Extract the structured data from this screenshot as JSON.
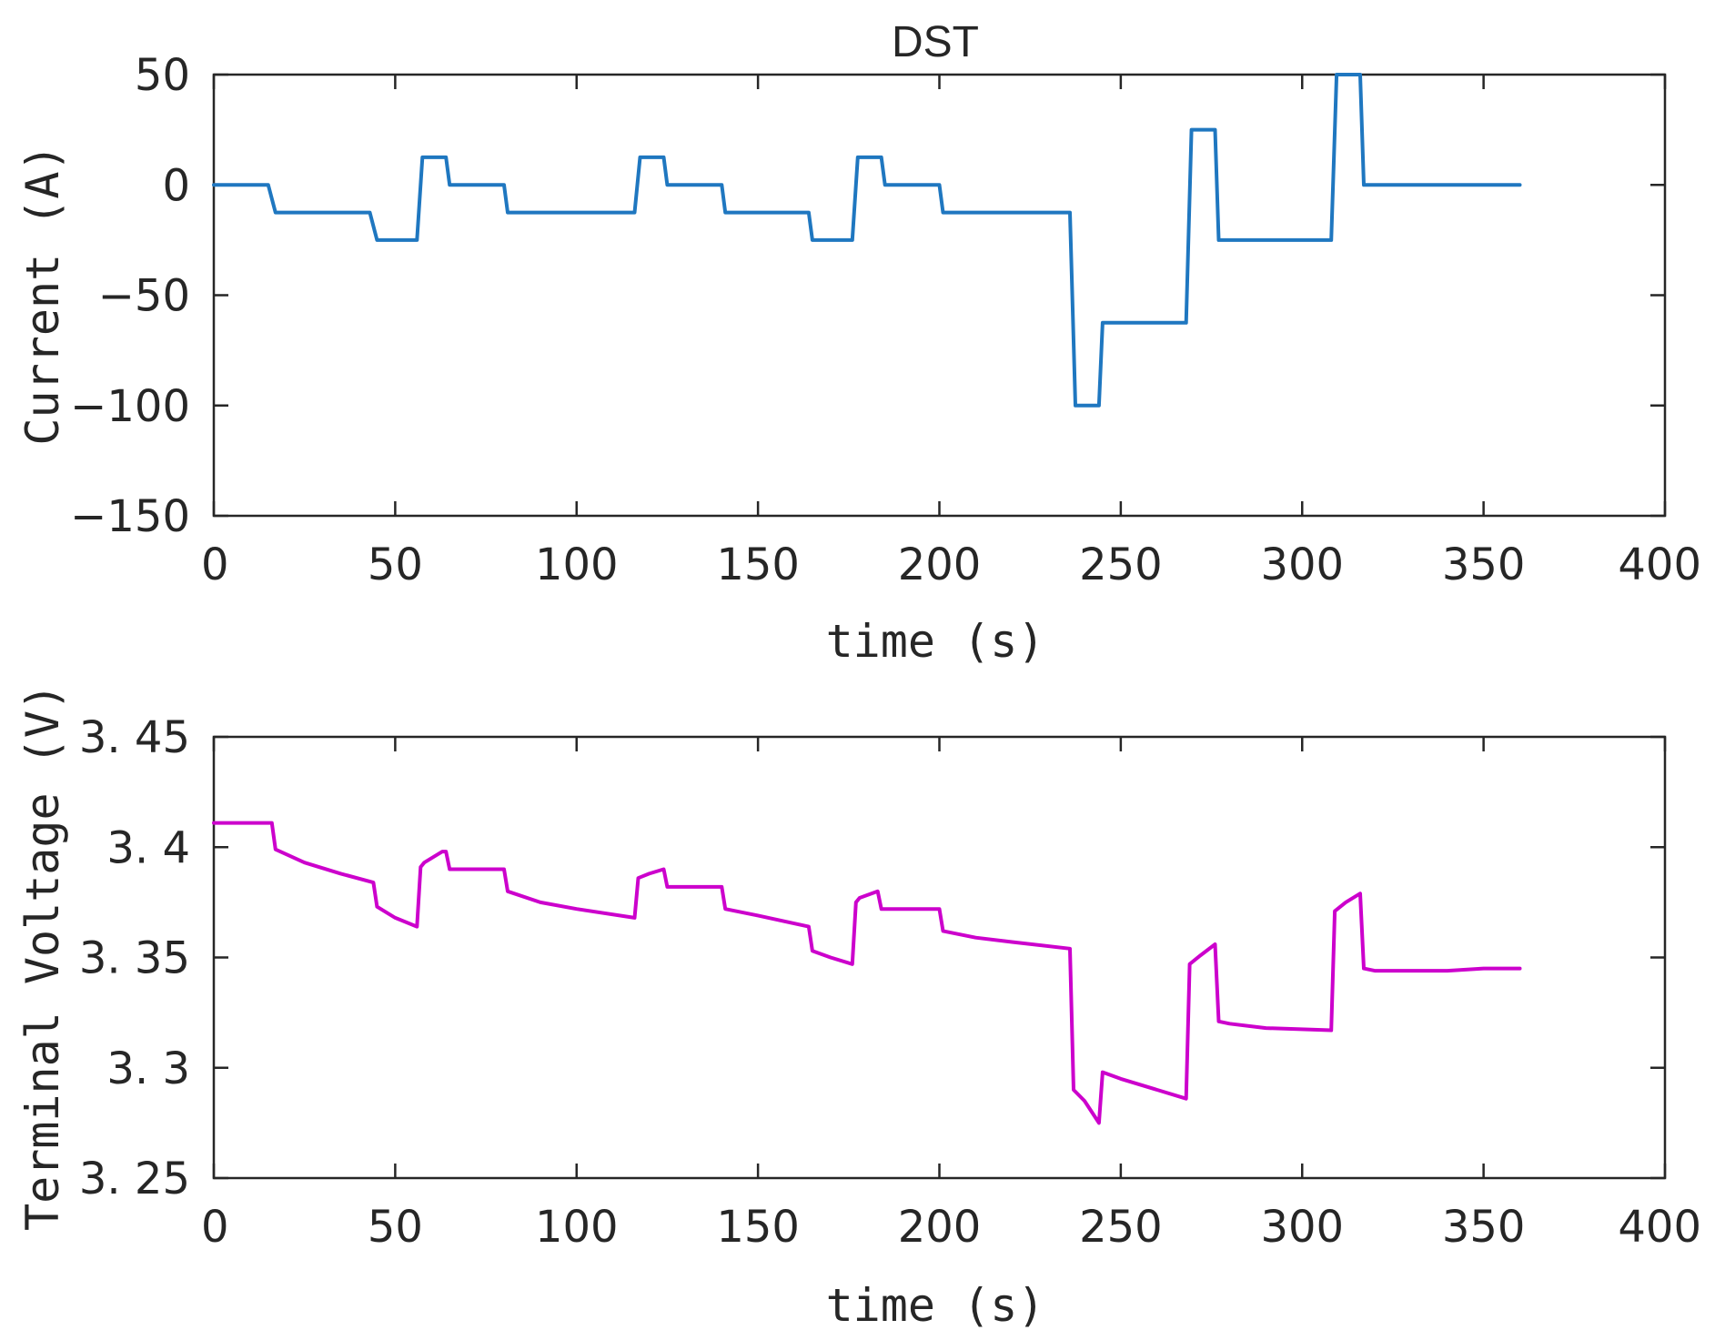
{
  "chart_data": [
    {
      "type": "line",
      "title": "DST",
      "xlabel": "time (s)",
      "ylabel": "Current (A)",
      "xlim": [
        0,
        400
      ],
      "ylim": [
        -150,
        50
      ],
      "xticks": [
        0,
        50,
        100,
        150,
        200,
        250,
        300,
        350,
        400
      ],
      "yticks": [
        -150,
        -100,
        -50,
        0,
        50
      ],
      "xtick_labels": [
        "0",
        "50",
        "100",
        "150",
        "200",
        "250",
        "300",
        "350",
        "400"
      ],
      "ytick_labels": [
        "−150",
        "−100",
        "−50",
        "0",
        "50"
      ],
      "grid": false,
      "series": [
        {
          "name": "Current",
          "color": "#1f77c0",
          "x": [
            0,
            15,
            17,
            43,
            45,
            56,
            57.5,
            64,
            65,
            80,
            81,
            116,
            117.5,
            124,
            125,
            140,
            141,
            164,
            165,
            176,
            177.5,
            184,
            185,
            200,
            201,
            236,
            237.5,
            244,
            245,
            268,
            269.5,
            276,
            277,
            308,
            309.5,
            316,
            317,
            360
          ],
          "y": [
            0,
            0,
            -12.5,
            -12.5,
            -25,
            -25,
            12.5,
            12.5,
            0,
            0,
            -12.5,
            -12.5,
            12.5,
            12.5,
            0,
            0,
            -12.5,
            -12.5,
            -25,
            -25,
            12.5,
            12.5,
            0,
            0,
            -12.5,
            -12.5,
            -100,
            -100,
            -62.5,
            -62.5,
            25,
            25,
            -25,
            -25,
            50,
            50,
            0,
            0
          ]
        }
      ]
    },
    {
      "type": "line",
      "title": "",
      "xlabel": "time (s)",
      "ylabel": "Terminal Voltage (V)",
      "xlim": [
        0,
        400
      ],
      "ylim": [
        3.25,
        3.45
      ],
      "xticks": [
        0,
        50,
        100,
        150,
        200,
        250,
        300,
        350,
        400
      ],
      "yticks": [
        3.25,
        3.3,
        3.35,
        3.4,
        3.45
      ],
      "xtick_labels": [
        "0",
        "50",
        "100",
        "150",
        "200",
        "250",
        "300",
        "350",
        "400"
      ],
      "ytick_labels": [
        "3. 25",
        "3. 3",
        "3. 35",
        "3. 4",
        "3. 45"
      ],
      "grid": false,
      "series": [
        {
          "name": "Terminal Voltage",
          "color": "#cc00cc",
          "x": [
            0,
            16,
            17,
            25,
            35,
            44,
            45,
            50,
            56,
            57,
            58,
            63,
            64,
            65,
            70,
            80,
            81,
            90,
            100,
            116,
            117,
            120,
            124,
            125,
            130,
            140,
            141,
            150,
            164,
            165,
            170,
            176,
            177,
            178,
            183,
            184,
            185,
            190,
            200,
            201,
            210,
            220,
            236,
            237,
            240,
            244,
            245,
            250,
            260,
            268,
            269,
            272,
            276,
            277,
            280,
            290,
            308,
            309,
            312,
            316,
            317,
            320,
            330,
            340,
            350,
            360
          ],
          "y": [
            3.411,
            3.411,
            3.399,
            3.393,
            3.388,
            3.384,
            3.373,
            3.368,
            3.364,
            3.391,
            3.393,
            3.398,
            3.398,
            3.39,
            3.39,
            3.39,
            3.38,
            3.375,
            3.372,
            3.368,
            3.386,
            3.388,
            3.39,
            3.382,
            3.382,
            3.382,
            3.372,
            3.369,
            3.364,
            3.353,
            3.35,
            3.347,
            3.375,
            3.377,
            3.38,
            3.372,
            3.372,
            3.372,
            3.372,
            3.362,
            3.359,
            3.357,
            3.354,
            3.29,
            3.285,
            3.275,
            3.298,
            3.295,
            3.29,
            3.286,
            3.347,
            3.351,
            3.356,
            3.321,
            3.32,
            3.318,
            3.317,
            3.371,
            3.375,
            3.379,
            3.345,
            3.344,
            3.344,
            3.344,
            3.345,
            3.345
          ]
        }
      ]
    }
  ]
}
